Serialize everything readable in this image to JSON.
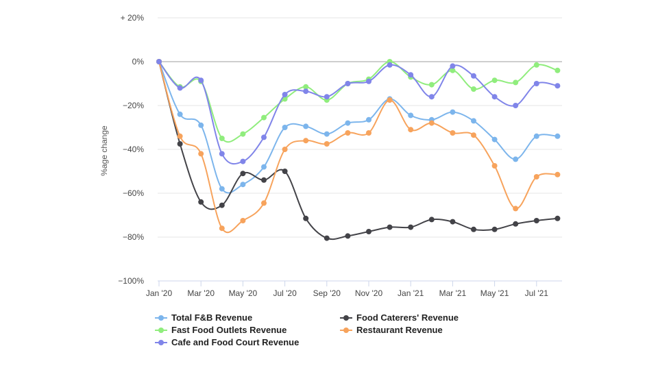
{
  "chart_data": {
    "type": "line",
    "title": "",
    "ylabel": "%age change",
    "ylim": [
      -100,
      20
    ],
    "yticks": [
      20,
      0,
      -20,
      -40,
      -60,
      -80,
      -100
    ],
    "ytick_labels": [
      "+ 20%",
      "0%",
      "−20%",
      "−40%",
      "−60%",
      "−80%",
      "−100%"
    ],
    "x": [
      "Jan '20",
      "Feb '20",
      "Mar '20",
      "Apr '20",
      "May '20",
      "Jun '20",
      "Jul '20",
      "Aug '20",
      "Sep '20",
      "Oct '20",
      "Nov '20",
      "Dec '20",
      "Jan '21",
      "Feb '21",
      "Mar '21",
      "Apr '21",
      "May '21",
      "Jun '21",
      "Jul '21",
      "Aug '21"
    ],
    "xtick_labels": [
      "Jan '20",
      "Mar '20",
      "May '20",
      "Jul '20",
      "Sep '20",
      "Nov '20",
      "Jan '21",
      "Mar '21",
      "May '21",
      "Jul '21"
    ],
    "legend_position": "bottom",
    "series": [
      {
        "name": "Total F&B Revenue",
        "color": "#7cb5ec",
        "values": [
          0,
          -24,
          -29,
          -58,
          -56,
          -48,
          -30,
          -29.5,
          -33,
          -28,
          -26.5,
          -17,
          -24.5,
          -26.5,
          -23,
          -27,
          -35.5,
          -44.5,
          -34,
          -34
        ]
      },
      {
        "name": "Food Caterers' Revenue",
        "color": "#434348",
        "values": [
          0,
          -37.5,
          -64,
          -65.5,
          -51,
          -54,
          -50,
          -71.5,
          -80.5,
          -79.5,
          -77.5,
          -75.5,
          -75.5,
          -72,
          -73,
          -76.5,
          -76.5,
          -74,
          -72.5,
          -71.5
        ]
      },
      {
        "name": "Fast Food Outlets Revenue",
        "color": "#90ed7d",
        "values": [
          0,
          -11.5,
          -9,
          -35,
          -33,
          -25.5,
          -17,
          -11.5,
          -17.5,
          -10,
          -8,
          0,
          -7,
          -10.5,
          -4,
          -12.5,
          -8.5,
          -9.5,
          -1.5,
          -4
        ]
      },
      {
        "name": "Restaurant Revenue",
        "color": "#f7a35c",
        "values": [
          0,
          -34,
          -42,
          -76,
          -72.5,
          -64.5,
          -40,
          -36,
          -37.5,
          -32.5,
          -32.5,
          -17.5,
          -31,
          -28,
          -32.5,
          -33.5,
          -47.5,
          -67,
          -52.5,
          -51.5
        ]
      },
      {
        "name": "Cafe and Food Court Revenue",
        "color": "#8085e9",
        "values": [
          0,
          -12,
          -8.5,
          -42,
          -45.5,
          -34.5,
          -15,
          -13.5,
          -16,
          -10,
          -9,
          -1.5,
          -6,
          -16,
          -2,
          -6.5,
          -16,
          -20,
          -10,
          -11
        ]
      }
    ]
  }
}
